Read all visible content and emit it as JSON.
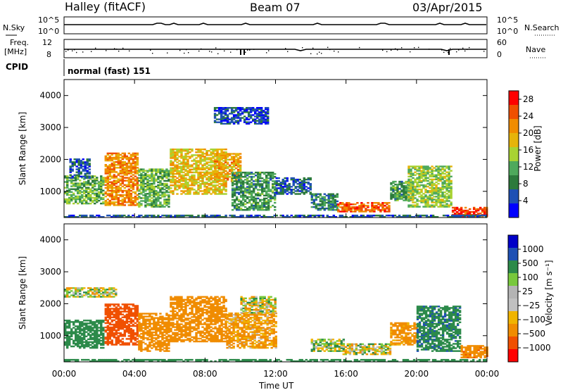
{
  "header": {
    "station": "Halley (fitACF)",
    "beam": "Beam 07",
    "date": "03/Apr/2015"
  },
  "panels": {
    "nsky": {
      "label": "N.Sky",
      "ticks": [
        "10^5",
        "10^0"
      ],
      "right_label": "N.Search",
      "right_ticks": [
        "10^5",
        "10^0"
      ]
    },
    "freq": {
      "label_line1": "Freq.",
      "label_line2": "[MHz]",
      "ticks": [
        "12",
        "8"
      ],
      "right_label": "Nave",
      "right_ticks": [
        "60",
        "0"
      ]
    },
    "cpid": {
      "label": "CPID",
      "value": "normal (fast) 151"
    }
  },
  "x_axis": {
    "ticks": [
      "00:00",
      "04:00",
      "08:00",
      "12:00",
      "16:00",
      "20:00",
      "00:00"
    ],
    "label": "Time UT"
  },
  "colors": {
    "power_scale": [
      "#0000ff",
      "#1e50b4",
      "#2c7a3c",
      "#4ea95c",
      "#a8d232",
      "#e6b40a",
      "#f08c00",
      "#f05000",
      "#ff0000"
    ],
    "velocity_scale": [
      "#ff0000",
      "#f05000",
      "#f08c00",
      "#f0b400",
      "#c0c0c0",
      "#b4b4b4",
      "#78c83c",
      "#2c8a4a",
      "#1e50b4",
      "#0000c8"
    ]
  },
  "chart_data": [
    {
      "type": "heatmap",
      "name_hint": "power",
      "ylabel": "Slant Range [km]",
      "xlabel": "Time UT",
      "xlim": [
        0,
        24
      ],
      "ylim": [
        180,
        4500
      ],
      "yticks": [
        "1000",
        "2000",
        "3000",
        "4000"
      ],
      "colorbar": {
        "label": "Power [dB]",
        "ticks": [
          "4",
          "8",
          "12",
          "16",
          "20",
          "24",
          "28"
        ],
        "range": [
          0,
          30
        ]
      },
      "patches": [
        {
          "t0": 0.0,
          "t1": 2.2,
          "r0": 600,
          "r1": 1500,
          "v": 12
        },
        {
          "t0": 0.3,
          "t1": 1.5,
          "r0": 1400,
          "r1": 2000,
          "v": 6
        },
        {
          "t0": 2.3,
          "t1": 4.2,
          "r0": 550,
          "r1": 2200,
          "v": 22
        },
        {
          "t0": 4.2,
          "t1": 6.0,
          "r0": 500,
          "r1": 1700,
          "v": 12
        },
        {
          "t0": 6.0,
          "t1": 9.2,
          "r0": 900,
          "r1": 2300,
          "v": 18
        },
        {
          "t0": 8.5,
          "t1": 10.0,
          "r0": 1300,
          "r1": 2200,
          "v": 20
        },
        {
          "t0": 9.5,
          "t1": 12.0,
          "r0": 400,
          "r1": 1600,
          "v": 10
        },
        {
          "t0": 12.0,
          "t1": 14.0,
          "r0": 900,
          "r1": 1400,
          "v": 6
        },
        {
          "t0": 14.0,
          "t1": 15.5,
          "r0": 400,
          "r1": 900,
          "v": 8
        },
        {
          "t0": 15.5,
          "t1": 18.5,
          "r0": 350,
          "r1": 650,
          "v": 24
        },
        {
          "t0": 18.5,
          "t1": 19.8,
          "r0": 700,
          "r1": 1300,
          "v": 10
        },
        {
          "t0": 19.5,
          "t1": 22.0,
          "r0": 500,
          "r1": 1800,
          "v": 14
        },
        {
          "t0": 22.0,
          "t1": 24.0,
          "r0": 200,
          "r1": 500,
          "v": 26
        },
        {
          "t0": 8.5,
          "t1": 11.5,
          "r0": 3100,
          "r1": 3600,
          "v": 5
        },
        {
          "t0": 0.0,
          "t1": 24.0,
          "r0": 180,
          "r1": 260,
          "v": 6
        }
      ]
    },
    {
      "type": "heatmap",
      "name_hint": "velocity",
      "ylabel": "Slant Range [km]",
      "xlabel": "Time UT",
      "xlim": [
        0,
        24
      ],
      "ylim": [
        180,
        4500
      ],
      "yticks": [
        "1000",
        "2000",
        "3000",
        "4000"
      ],
      "colorbar": {
        "label": "Velocity [m s⁻¹]",
        "ticks": [
          "1000",
          "500",
          "100",
          "25",
          "−25",
          "−100",
          "−500",
          "−1000"
        ]
      },
      "patches": [
        {
          "t0": 0.0,
          "t1": 2.2,
          "r0": 600,
          "r1": 1500,
          "v": 300
        },
        {
          "t0": 2.3,
          "t1": 4.2,
          "r0": 700,
          "r1": 2000,
          "v": -700
        },
        {
          "t0": 4.2,
          "t1": 6.0,
          "r0": 500,
          "r1": 1700,
          "v": -300
        },
        {
          "t0": 6.0,
          "t1": 9.2,
          "r0": 800,
          "r1": 2200,
          "v": -250
        },
        {
          "t0": 9.2,
          "t1": 12.0,
          "r0": 600,
          "r1": 1700,
          "v": -150
        },
        {
          "t0": 10.0,
          "t1": 12.0,
          "r0": 1700,
          "r1": 2200,
          "v": 0
        },
        {
          "t0": 14.0,
          "t1": 15.8,
          "r0": 500,
          "r1": 900,
          "v": 60
        },
        {
          "t0": 15.8,
          "t1": 18.5,
          "r0": 400,
          "r1": 750,
          "v": 0
        },
        {
          "t0": 18.5,
          "t1": 20.0,
          "r0": 700,
          "r1": 1400,
          "v": -200
        },
        {
          "t0": 20.0,
          "t1": 22.5,
          "r0": 500,
          "r1": 1900,
          "v": 400
        },
        {
          "t0": 22.5,
          "t1": 24.0,
          "r0": 300,
          "r1": 700,
          "v": -400
        },
        {
          "t0": 0.0,
          "t1": 3.0,
          "r0": 2200,
          "r1": 2500,
          "v": 0
        },
        {
          "t0": 0.0,
          "t1": 24.0,
          "r0": 180,
          "r1": 260,
          "v": 300
        }
      ]
    }
  ]
}
